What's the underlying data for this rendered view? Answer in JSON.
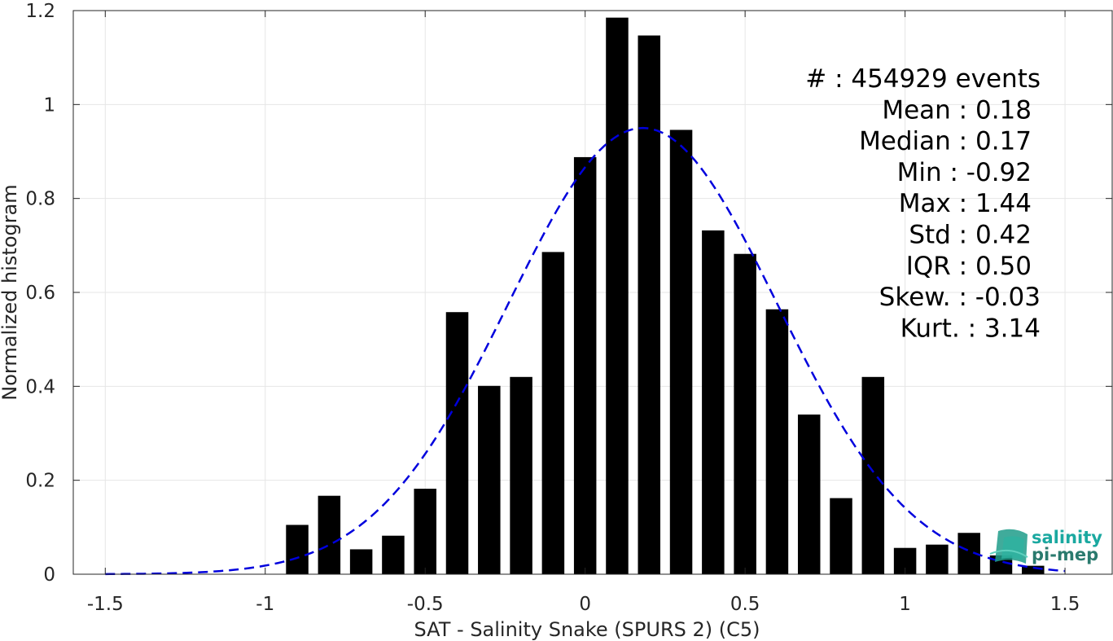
{
  "chart_data": {
    "type": "bar",
    "title": "",
    "xlabel": "SAT - Salinity Snake (SPURS 2) (C5)",
    "ylabel": "Normalized histogram",
    "xlim": [
      -1.6,
      1.65
    ],
    "ylim": [
      0,
      1.2
    ],
    "grid": true,
    "x_ticks": [
      -1.5,
      -1,
      -0.5,
      0,
      0.5,
      1,
      1.5
    ],
    "x_tick_labels": [
      "-1.5",
      "-1",
      "-0.5",
      "0",
      "0.5",
      "1",
      "1.5"
    ],
    "y_ticks": [
      0,
      0.2,
      0.4,
      0.6,
      0.8,
      1,
      1.2
    ],
    "y_tick_labels": [
      "0",
      "0.2",
      "0.4",
      "0.6",
      "0.8",
      "1",
      "1.2"
    ],
    "bar_width": 0.07,
    "bins": {
      "x": [
        -0.9,
        -0.8,
        -0.7,
        -0.6,
        -0.5,
        -0.4,
        -0.3,
        -0.2,
        -0.1,
        0.0,
        0.1,
        0.2,
        0.3,
        0.4,
        0.5,
        0.6,
        0.7,
        0.8,
        0.9,
        1.0,
        1.1,
        1.2,
        1.3,
        1.4
      ],
      "values": [
        0.105,
        0.167,
        0.053,
        0.082,
        0.182,
        0.558,
        0.401,
        0.42,
        0.686,
        0.888,
        1.185,
        1.147,
        0.946,
        0.732,
        0.682,
        0.564,
        0.34,
        0.162,
        0.42,
        0.056,
        0.063,
        0.088,
        0.04,
        0.018
      ]
    },
    "fit_curve": {
      "type": "gaussian",
      "style": "dashed",
      "color": "#0000dd",
      "mean": 0.18,
      "std": 0.42,
      "peak": 0.95,
      "x_range": [
        -1.5,
        1.5
      ]
    },
    "bar_color": "#000000",
    "stats_placement": "top-right",
    "stats": [
      {
        "label": "#  ",
        "value": "454929 events"
      },
      {
        "label": "Mean",
        "value": "0.18"
      },
      {
        "label": "Median",
        "value": "0.17"
      },
      {
        "label": "Min",
        "value": "-0.92"
      },
      {
        "label": "Max",
        "value": "1.44"
      },
      {
        "label": "Std",
        "value": "0.42"
      },
      {
        "label": "IQR",
        "value": "0.50"
      },
      {
        "label": "Skew.",
        "value": "-0.03"
      },
      {
        "label": "Kurt.",
        "value": "3.14"
      }
    ]
  },
  "logo": {
    "line1": "salinity",
    "line2": "pi-mep",
    "color1": "#1aa8a0",
    "color2": "#2a7a6e"
  }
}
